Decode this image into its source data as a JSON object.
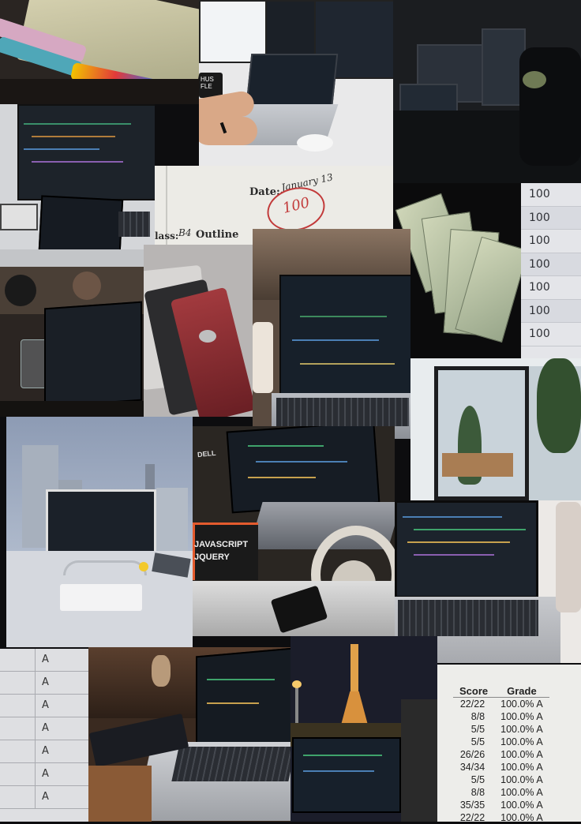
{
  "collage": {
    "paper": {
      "date_label": "Date:",
      "date_value": "January 13",
      "grade_circle": "100",
      "class_label": "lass:",
      "class_value": "B4",
      "outline_label": "Outline"
    },
    "mug_text": "HUS\nFLE",
    "book_cover": {
      "line1": "JAVASCRIPT",
      "line2": "JQUERY"
    },
    "monitor_brand": "DELL",
    "scores_100": [
      "100",
      "100",
      "100",
      "100",
      "100",
      "100",
      "100"
    ],
    "letter_grades": [
      "A",
      "A",
      "A",
      "A",
      "A",
      "A",
      "A"
    ],
    "gradebook": {
      "headers": [
        "Score",
        "Grade"
      ],
      "rows": [
        [
          "22/22",
          "100.0% A"
        ],
        [
          "8/8",
          "100.0% A"
        ],
        [
          "5/5",
          "100.0% A"
        ],
        [
          "5/5",
          "100.0% A"
        ],
        [
          "26/26",
          "100.0% A"
        ],
        [
          "34/34",
          "100.0% A"
        ],
        [
          "5/5",
          "100.0% A"
        ],
        [
          "8/8",
          "100.0% A"
        ],
        [
          "35/35",
          "100.0% A"
        ],
        [
          "22/22",
          "100.0% A"
        ]
      ]
    }
  }
}
